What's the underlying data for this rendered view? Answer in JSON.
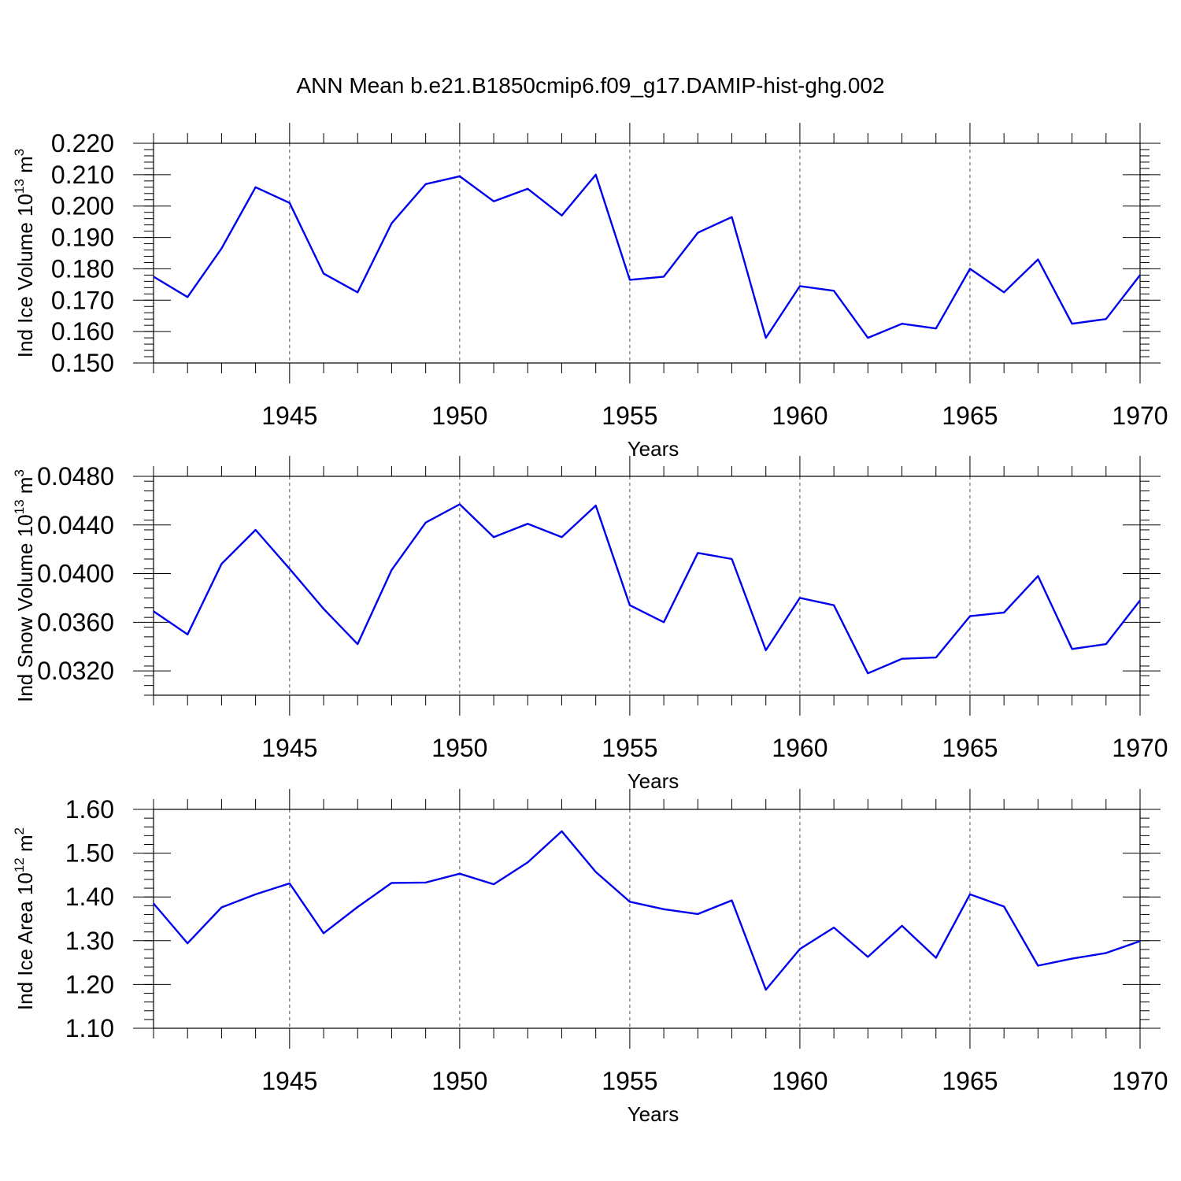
{
  "figure": {
    "title": "ANN Mean b.e21.B1850cmip6.f09_g17.DAMIP-hist-ghg.002"
  },
  "chart_data": [
    {
      "type": "line",
      "title": "",
      "xlabel": "Years",
      "ylabel": "Ind Ice Volume 10",
      "ylabel_sup": "13",
      "ylabel_unit": "m",
      "ylabel_unit_sup": "3",
      "xlim": [
        1941,
        1970
      ],
      "ylim": [
        0.15,
        0.22
      ],
      "x_ticks": [
        1945,
        1950,
        1955,
        1960,
        1965,
        1970
      ],
      "y_ticks": [
        "0.150",
        "0.160",
        "0.170",
        "0.180",
        "0.190",
        "0.200",
        "0.210",
        "0.220"
      ],
      "y_tick_values": [
        0.15,
        0.16,
        0.17,
        0.18,
        0.19,
        0.2,
        0.21,
        0.22
      ],
      "grid": "vertical dashed at major x ticks",
      "series": [
        {
          "color": "#0000ee",
          "x": [
            1941,
            1942,
            1943,
            1944,
            1945,
            1946,
            1947,
            1948,
            1949,
            1950,
            1951,
            1952,
            1953,
            1954,
            1955,
            1956,
            1957,
            1958,
            1959,
            1960,
            1961,
            1962,
            1963,
            1964,
            1965,
            1966,
            1967,
            1968,
            1969,
            1970
          ],
          "values": [
            0.1775,
            0.171,
            0.1865,
            0.206,
            0.201,
            0.1785,
            0.1725,
            0.1945,
            0.207,
            0.2095,
            0.2015,
            0.2055,
            0.197,
            0.21,
            0.1765,
            0.1775,
            0.1915,
            0.1965,
            0.158,
            0.1745,
            0.173,
            0.158,
            0.1625,
            0.161,
            0.18,
            0.1725,
            0.183,
            0.1625,
            0.164,
            0.178
          ]
        }
      ]
    },
    {
      "type": "line",
      "title": "",
      "xlabel": "Years",
      "ylabel": "Ind Snow Volume 10",
      "ylabel_sup": "13",
      "ylabel_unit": "m",
      "ylabel_unit_sup": "3",
      "xlim": [
        1941,
        1970
      ],
      "ylim": [
        0.03,
        0.048
      ],
      "x_ticks": [
        1945,
        1950,
        1955,
        1960,
        1965,
        1970
      ],
      "y_ticks": [
        "0.0320",
        "0.0360",
        "0.0400",
        "0.0440",
        "0.0480"
      ],
      "y_tick_values": [
        0.032,
        0.036,
        0.04,
        0.044,
        0.048
      ],
      "grid": "vertical dashed at major x ticks",
      "series": [
        {
          "color": "#0000ee",
          "x": [
            1941,
            1942,
            1943,
            1944,
            1945,
            1946,
            1947,
            1948,
            1949,
            1950,
            1951,
            1952,
            1953,
            1954,
            1955,
            1956,
            1957,
            1958,
            1959,
            1960,
            1961,
            1962,
            1963,
            1964,
            1965,
            1966,
            1967,
            1968,
            1969,
            1970
          ],
          "values": [
            0.0369,
            0.035,
            0.0408,
            0.0436,
            0.0404,
            0.0371,
            0.0342,
            0.0403,
            0.0442,
            0.0457,
            0.043,
            0.0441,
            0.043,
            0.0456,
            0.0374,
            0.036,
            0.0417,
            0.0412,
            0.0337,
            0.038,
            0.0374,
            0.0318,
            0.033,
            0.0331,
            0.0365,
            0.0368,
            0.0398,
            0.0338,
            0.0342,
            0.0378
          ]
        }
      ]
    },
    {
      "type": "line",
      "title": "",
      "xlabel": "Years",
      "ylabel": "Ind Ice Area 10",
      "ylabel_sup": "12",
      "ylabel_unit": "m",
      "ylabel_unit_sup": "2",
      "xlim": [
        1941,
        1970
      ],
      "ylim": [
        1.1,
        1.6
      ],
      "x_ticks": [
        1945,
        1950,
        1955,
        1960,
        1965,
        1970
      ],
      "y_ticks": [
        "1.10",
        "1.20",
        "1.30",
        "1.40",
        "1.50",
        "1.60"
      ],
      "y_tick_values": [
        1.1,
        1.2,
        1.3,
        1.4,
        1.5,
        1.6
      ],
      "grid": "vertical dashed at major x ticks",
      "series": [
        {
          "color": "#0000ee",
          "x": [
            1941,
            1942,
            1943,
            1944,
            1945,
            1946,
            1947,
            1948,
            1949,
            1950,
            1951,
            1952,
            1953,
            1954,
            1955,
            1956,
            1957,
            1958,
            1959,
            1960,
            1961,
            1962,
            1963,
            1964,
            1965,
            1966,
            1967,
            1968,
            1969,
            1970
          ],
          "values": [
            1.385,
            1.294,
            1.376,
            1.406,
            1.431,
            1.317,
            1.377,
            1.432,
            1.433,
            1.453,
            1.429,
            1.479,
            1.55,
            1.457,
            1.389,
            1.372,
            1.361,
            1.392,
            1.188,
            1.281,
            1.33,
            1.263,
            1.334,
            1.261,
            1.406,
            1.378,
            1.243,
            1.259,
            1.272,
            1.299
          ]
        }
      ]
    }
  ]
}
